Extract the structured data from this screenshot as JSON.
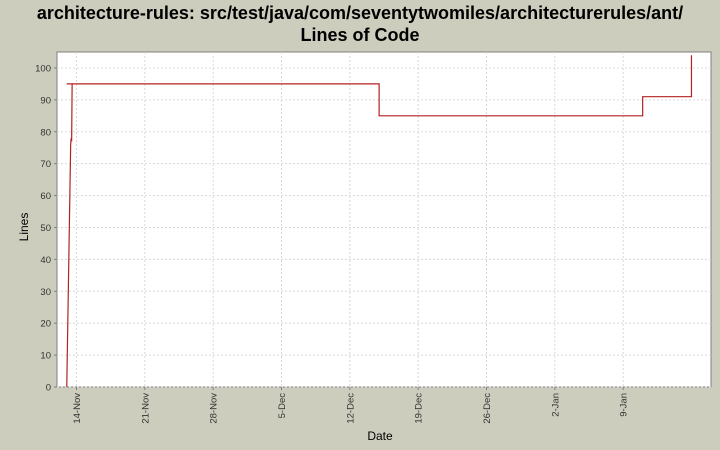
{
  "chart_data": {
    "type": "line",
    "title": "architecture-rules: src/test/java/com/seventytwomiles/architecturerules/ant/",
    "subtitle": "Lines of Code",
    "xlabel": "Date",
    "ylabel": "Lines",
    "x_ticks": [
      "14-Nov",
      "21-Nov",
      "28-Nov",
      "5-Dec",
      "12-Dec",
      "19-Dec",
      "26-Dec",
      "2-Jan",
      "9-Jan"
    ],
    "y_ticks": [
      "0",
      "10",
      "20",
      "30",
      "40",
      "50",
      "60",
      "70",
      "80",
      "90",
      "100"
    ],
    "xlim": [
      "2006-11-12",
      "2007-01-18"
    ],
    "ylim": [
      0,
      105
    ],
    "grid": true,
    "series_color": "#b22222",
    "series": [
      {
        "x": [
          "2006-11-13",
          "2006-11-13",
          "2006-11-13",
          "2006-11-13",
          "2006-11-13",
          "2006-11-13",
          "2006-12-15",
          "2006-12-15",
          "2007-01-11",
          "2007-01-11",
          "2007-01-16",
          "2007-01-16"
        ],
        "values": [
          0,
          76,
          78,
          77,
          95,
          95,
          95,
          85,
          85,
          91,
          91,
          104
        ]
      }
    ]
  }
}
